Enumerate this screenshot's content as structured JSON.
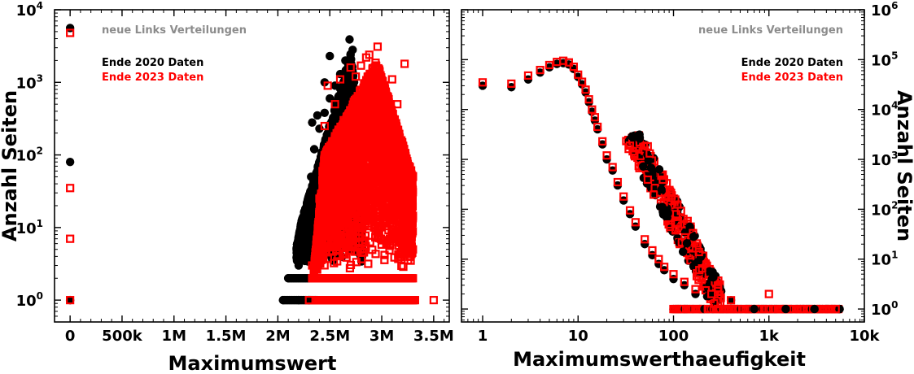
{
  "chart_data": [
    {
      "type": "scatter",
      "title": "",
      "annotation": "neue Links Verteilungen",
      "xlabel": "Maximumswert",
      "ylabel": "Anzahl Seiten",
      "xlim": [
        -150000,
        3650000
      ],
      "ylim": [
        0.5,
        10000
      ],
      "yscale": "log",
      "xticks": [
        0,
        500000,
        1000000,
        1500000,
        2000000,
        2500000,
        3000000,
        3500000
      ],
      "xticklabels": [
        "0",
        "500k",
        "1M",
        "1.5M",
        "2M",
        "2.5M",
        "3M",
        "3.5M"
      ],
      "yticks": [
        1,
        10,
        100,
        1000,
        10000
      ],
      "yticklabels": [
        [
          "10",
          "0"
        ],
        [
          "10",
          "1"
        ],
        [
          "10",
          "2"
        ],
        [
          "10",
          "3"
        ],
        [
          "10",
          "4"
        ]
      ],
      "legend_position": "top-left",
      "colors": {
        "s2020": "#000000",
        "s2023": "#ff0000",
        "annotation": "#8c8c8c"
      },
      "series": [
        {
          "name": "Ende 2020 Daten",
          "marker": "filled-circle",
          "points": [
            [
              0,
              5600
            ],
            [
              0,
              80
            ],
            [
              0,
              1
            ],
            [
              2050000,
              1
            ],
            [
              2200000,
              1
            ],
            [
              2300000,
              1
            ],
            [
              2100000,
              2
            ],
            [
              2200000,
              3
            ],
            [
              2250000,
              6
            ],
            [
              2280000,
              11
            ],
            [
              2300000,
              22
            ],
            [
              2320000,
              50
            ],
            [
              2350000,
              120
            ],
            [
              2400000,
              230
            ],
            [
              2450000,
              380
            ],
            [
              2500000,
              600
            ],
            [
              2550000,
              900
            ],
            [
              2600000,
              1300
            ],
            [
              2650000,
              2000
            ],
            [
              2690000,
              3900
            ],
            [
              2720000,
              2800
            ],
            [
              2500000,
              2300
            ],
            [
              2450000,
              1000
            ],
            [
              2380000,
              350
            ],
            [
              2330000,
              280
            ]
          ]
        },
        {
          "name": "Ende 2023 Daten",
          "marker": "open-square",
          "points": [
            [
              0,
              4800
            ],
            [
              0,
              35
            ],
            [
              0,
              7
            ],
            [
              0,
              1
            ],
            [
              2300000,
              1
            ],
            [
              2700000,
              1
            ],
            [
              3000000,
              1
            ],
            [
              3300000,
              1
            ],
            [
              3500000,
              1
            ],
            [
              2330000,
              3
            ],
            [
              2400000,
              4
            ],
            [
              2400000,
              25
            ],
            [
              2430000,
              60
            ],
            [
              2450000,
              250
            ],
            [
              2480000,
              900
            ],
            [
              2550000,
              500
            ],
            [
              2600000,
              1100
            ],
            [
              2700000,
              1600
            ],
            [
              2750000,
              1200
            ],
            [
              2800000,
              1700
            ],
            [
              2850000,
              2200
            ],
            [
              2880000,
              2400
            ],
            [
              2960000,
              3100
            ],
            [
              3100000,
              1100
            ],
            [
              3150000,
              500
            ],
            [
              3220000,
              1800
            ],
            [
              3300000,
              50
            ],
            [
              3300000,
              5
            ]
          ]
        }
      ]
    },
    {
      "type": "scatter",
      "title": "",
      "annotation": "neue Links Verteilungen",
      "xlabel": "Maximumswerthaeufigkeit",
      "ylabel": "Anzahl Seiten",
      "xlim": [
        0.6,
        10000
      ],
      "ylim": [
        0.55,
        1000000
      ],
      "xscale": "log",
      "yscale": "log",
      "xticks": [
        1,
        10,
        100,
        1000,
        10000
      ],
      "xticklabels": [
        "1",
        "10",
        "100",
        "1k",
        "10k"
      ],
      "yticks": [
        1,
        10,
        100,
        1000,
        10000,
        100000,
        1000000
      ],
      "yticklabels": [
        [
          "10",
          "0"
        ],
        [
          "10",
          "1"
        ],
        [
          "10",
          "2"
        ],
        [
          "10",
          "3"
        ],
        [
          "10",
          "4"
        ],
        [
          "10",
          "5"
        ],
        [
          "10",
          "6"
        ]
      ],
      "legend_position": "top-right",
      "colors": {
        "s2020": "#000000",
        "s2023": "#ff0000",
        "annotation": "#8c8c8c"
      },
      "series": [
        {
          "name": "Ende 2020 Daten",
          "marker": "filled-circle",
          "points": [
            [
              1,
              30000
            ],
            [
              2,
              28000
            ],
            [
              3,
              40000
            ],
            [
              4,
              55000
            ],
            [
              5,
              70000
            ],
            [
              6,
              82000
            ],
            [
              7,
              85000
            ],
            [
              8,
              80000
            ],
            [
              9,
              65000
            ],
            [
              10,
              45000
            ],
            [
              11,
              32000
            ],
            [
              12,
              22000
            ],
            [
              13,
              14000
            ],
            [
              14,
              9000
            ],
            [
              15,
              6000
            ],
            [
              16,
              4000
            ],
            [
              18,
              2000
            ],
            [
              20,
              1000
            ],
            [
              23,
              600
            ],
            [
              26,
              300
            ],
            [
              30,
              150
            ],
            [
              35,
              80
            ],
            [
              40,
              45
            ],
            [
              50,
              20
            ],
            [
              60,
              12
            ],
            [
              70,
              8
            ],
            [
              80,
              6
            ],
            [
              100,
              4
            ],
            [
              130,
              3
            ],
            [
              170,
              2
            ],
            [
              250,
              2
            ],
            [
              400,
              1.5
            ],
            [
              700,
              1
            ],
            [
              1500,
              1
            ],
            [
              3000,
              1
            ],
            [
              5500,
              1
            ]
          ]
        },
        {
          "name": "Ende 2023 Daten",
          "marker": "open-square",
          "points": [
            [
              1,
              35000
            ],
            [
              2,
              33000
            ],
            [
              3,
              48000
            ],
            [
              4,
              62000
            ],
            [
              5,
              78000
            ],
            [
              6,
              90000
            ],
            [
              7,
              95000
            ],
            [
              8,
              88000
            ],
            [
              9,
              72000
            ],
            [
              10,
              50000
            ],
            [
              11,
              36000
            ],
            [
              12,
              25000
            ],
            [
              13,
              16000
            ],
            [
              14,
              10000
            ],
            [
              15,
              7000
            ],
            [
              16,
              4500
            ],
            [
              18,
              2300
            ],
            [
              20,
              1200
            ],
            [
              23,
              700
            ],
            [
              26,
              350
            ],
            [
              30,
              180
            ],
            [
              35,
              95
            ],
            [
              40,
              55
            ],
            [
              50,
              25
            ],
            [
              60,
              15
            ],
            [
              70,
              10
            ],
            [
              80,
              7
            ],
            [
              100,
              5
            ],
            [
              130,
              3.5
            ],
            [
              170,
              2.5
            ],
            [
              250,
              2
            ],
            [
              400,
              1.5
            ],
            [
              1000,
              2
            ],
            [
              100,
              1
            ],
            [
              300,
              1
            ],
            [
              1000,
              1
            ],
            [
              5000,
              1
            ]
          ]
        }
      ]
    }
  ]
}
